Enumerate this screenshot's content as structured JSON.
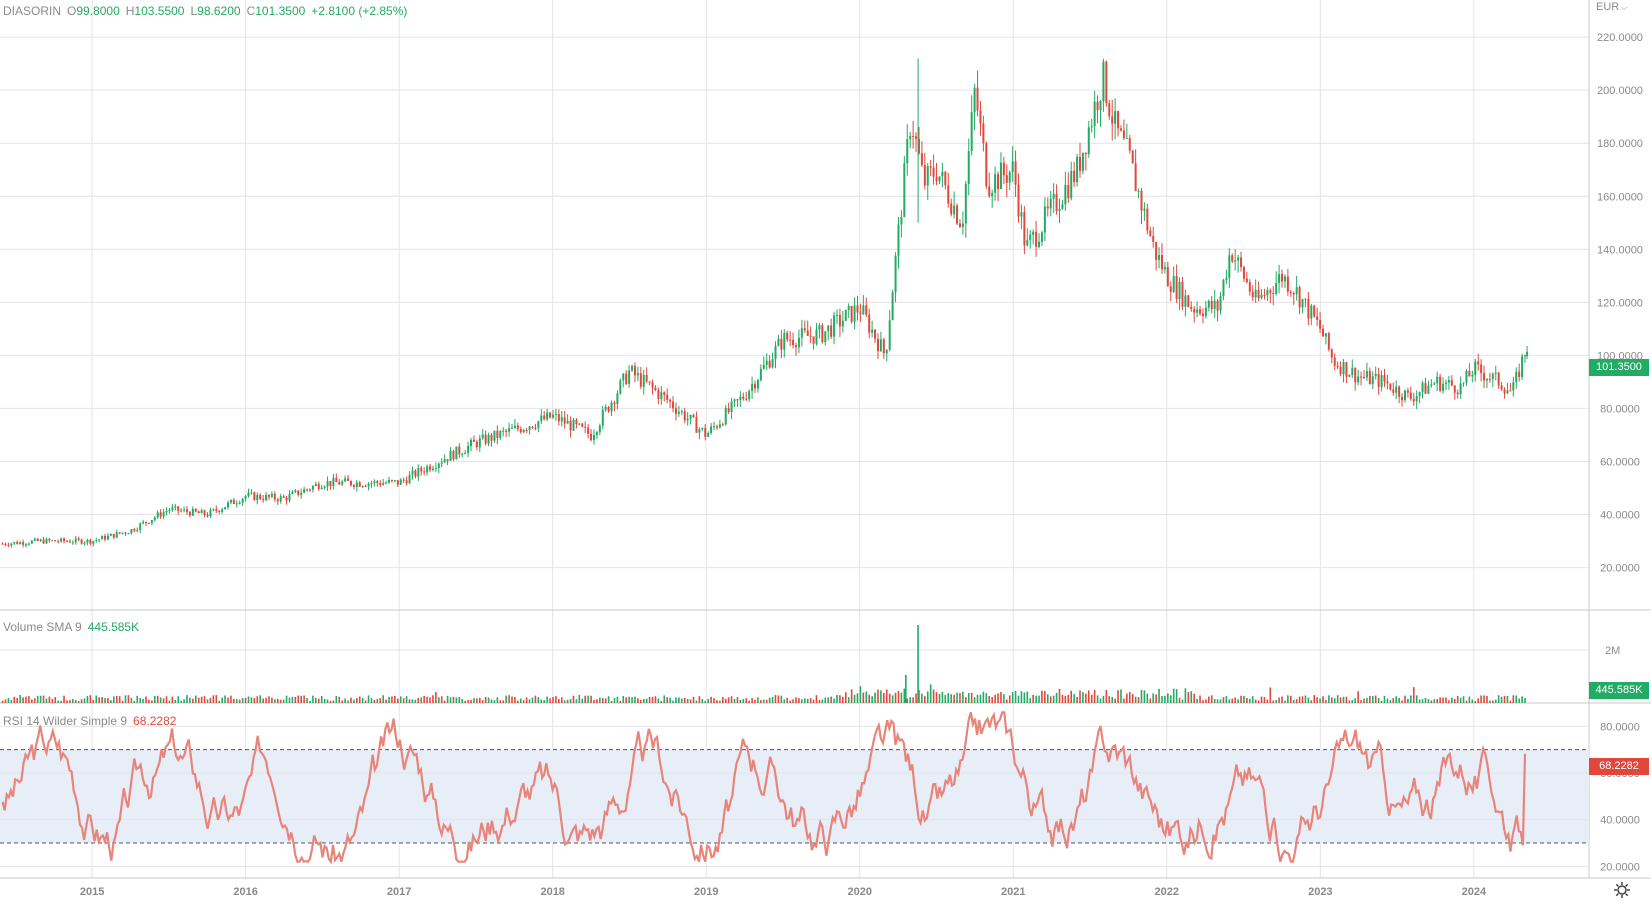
{
  "colors": {
    "up": "#22ab64",
    "down": "#e0483c",
    "rsi_line": "#e8857b",
    "rsi_band": "#e8eef8",
    "grid": "#e4e4e4",
    "axis_text": "#8a8a8a"
  },
  "header": {
    "symbol": "DIASORIN",
    "o_label": "O",
    "o_value": "99.8000",
    "h_label": "H",
    "h_value": "103.5500",
    "l_label": "L",
    "l_value": "98.6200",
    "c_label": "C",
    "c_value": "101.3500",
    "change": "+2.8100 (+2.85%)",
    "currency": "EUR"
  },
  "volume_legend": {
    "label": "Volume SMA 9",
    "value": "445.585K"
  },
  "rsi_legend": {
    "label": "RSI 14 Wilder Simple 9",
    "value": "68.2282"
  },
  "price_tag": "101.3500",
  "volume_tag": "445.585K",
  "rsi_tag": "68.2282",
  "icons": {
    "settings": "gear-icon",
    "currency_menu": "chevron-down-icon"
  },
  "chart_data": [
    {
      "type": "candlestick",
      "title": "DIASORIN",
      "x_ticks": [
        "2015",
        "2016",
        "2017",
        "2018",
        "2019",
        "2020",
        "2021",
        "2022",
        "2023",
        "2024"
      ],
      "y_ticks": [
        "20.0000",
        "40.0000",
        "60.0000",
        "80.0000",
        "100.0000",
        "120.0000",
        "140.0000",
        "160.0000",
        "180.0000",
        "200.0000",
        "220.0000"
      ],
      "ylim": [
        4,
        234
      ],
      "x": [
        "2014-06",
        "2014-09",
        "2015-01",
        "2015-04",
        "2015-07",
        "2015-10",
        "2016-01",
        "2016-04",
        "2016-07",
        "2016-10",
        "2017-01",
        "2017-04",
        "2017-07",
        "2017-10",
        "2018-01",
        "2018-04",
        "2018-07",
        "2018-10",
        "2019-01",
        "2019-04",
        "2019-07",
        "2019-10",
        "2020-01",
        "2020-03",
        "2020-05",
        "2020-06",
        "2020-07",
        "2020-09",
        "2020-10",
        "2020-11",
        "2021-01",
        "2021-02",
        "2021-04",
        "2021-06",
        "2021-08",
        "2021-09",
        "2021-10",
        "2021-12",
        "2022-01",
        "2022-03",
        "2022-05",
        "2022-06",
        "2022-08",
        "2022-10",
        "2022-11",
        "2023-01",
        "2023-02",
        "2023-04",
        "2023-06",
        "2023-08",
        "2023-10",
        "2023-12",
        "2024-01",
        "2024-03",
        "2024-04",
        "2024-05"
      ],
      "close": [
        29,
        30,
        30,
        34,
        42,
        40,
        47,
        46,
        52,
        52,
        52,
        60,
        67,
        72,
        77,
        70,
        94,
        83,
        70,
        85,
        106,
        108,
        118,
        100,
        190,
        165,
        170,
        150,
        200,
        165,
        170,
        140,
        155,
        170,
        205,
        185,
        175,
        140,
        130,
        118,
        118,
        140,
        120,
        130,
        125,
        110,
        98,
        92,
        90,
        84,
        90,
        88,
        95,
        90,
        86,
        101.35
      ],
      "high_max": 212,
      "last": {
        "open": 99.8,
        "high": 103.55,
        "low": 98.62,
        "close": 101.35
      }
    },
    {
      "type": "bar",
      "title": "Volume SMA 9",
      "y_ticks": [
        "2M"
      ],
      "last_value": "445.585K"
    },
    {
      "type": "line",
      "title": "RSI 14 Wilder Simple 9",
      "y_ticks": [
        "20.0000",
        "40.0000",
        "60.0000",
        "80.0000"
      ],
      "ylim": [
        15,
        90
      ],
      "band": [
        30,
        70
      ],
      "last_value": 68.2282
    }
  ]
}
